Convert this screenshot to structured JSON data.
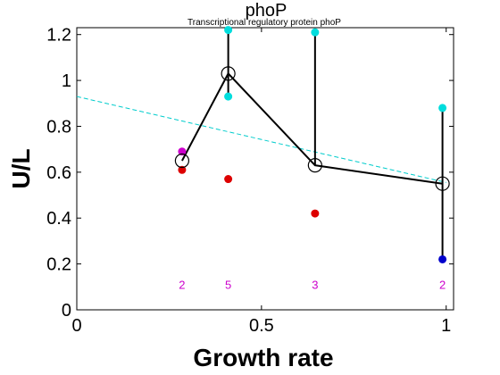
{
  "chart_data": {
    "type": "scatter",
    "title": "phoP",
    "subtitle": "Transcriptional regulatory protein phoP",
    "xlabel": "Growth rate",
    "ylabel": "U/L",
    "xlim": [
      0,
      1.02
    ],
    "ylim": [
      0,
      1.23
    ],
    "x_ticks": [
      {
        "v": 0,
        "label": "0"
      },
      {
        "v": 0.5,
        "label": "0.5"
      },
      {
        "v": 1,
        "label": "1"
      }
    ],
    "y_ticks": [
      {
        "v": 0,
        "label": "0"
      },
      {
        "v": 0.2,
        "label": "0.2"
      },
      {
        "v": 0.4,
        "label": "0.4"
      },
      {
        "v": 0.6,
        "label": "0.6"
      },
      {
        "v": 0.8,
        "label": "0.8"
      },
      {
        "v": 1,
        "label": "1"
      },
      {
        "v": 1.2,
        "label": "1.2"
      }
    ],
    "grid": false,
    "mean_series": {
      "color": "#000000",
      "points": [
        {
          "x": 0.285,
          "y": 0.65
        },
        {
          "x": 0.41,
          "y": 1.03
        },
        {
          "x": 0.645,
          "y": 0.63
        },
        {
          "x": 0.99,
          "y": 0.55
        }
      ]
    },
    "error_bars": [
      {
        "x": 0.41,
        "low": 0.93,
        "high": 1.22,
        "color": "#000000"
      },
      {
        "x": 0.645,
        "low": 0.63,
        "high": 1.21,
        "color": "#000000"
      },
      {
        "x": 0.99,
        "low": 0.22,
        "high": 0.88,
        "color": "#000000"
      }
    ],
    "samples": [
      {
        "x": 0.285,
        "y": 0.69,
        "color": "#cc00cc"
      },
      {
        "x": 0.285,
        "y": 0.61,
        "color": "#dd0000"
      },
      {
        "x": 0.41,
        "y": 1.22,
        "color": "#00dddd"
      },
      {
        "x": 0.41,
        "y": 0.93,
        "color": "#00dddd"
      },
      {
        "x": 0.41,
        "y": 0.57,
        "color": "#dd0000"
      },
      {
        "x": 0.645,
        "y": 1.21,
        "color": "#00dddd"
      },
      {
        "x": 0.645,
        "y": 0.42,
        "color": "#dd0000"
      },
      {
        "x": 0.99,
        "y": 0.88,
        "color": "#00dddd"
      },
      {
        "x": 0.99,
        "y": 0.22,
        "color": "#0000cc"
      }
    ],
    "trend_line": {
      "color": "#00cccc",
      "dashed": true,
      "x": [
        0,
        1
      ],
      "y": [
        0.93,
        0.555
      ]
    },
    "counts": [
      {
        "x": 0.285,
        "label": "2"
      },
      {
        "x": 0.41,
        "label": "5"
      },
      {
        "x": 0.645,
        "label": "3"
      },
      {
        "x": 0.99,
        "label": "2"
      }
    ],
    "count_y": 0.11,
    "count_color": "#cc00cc"
  }
}
